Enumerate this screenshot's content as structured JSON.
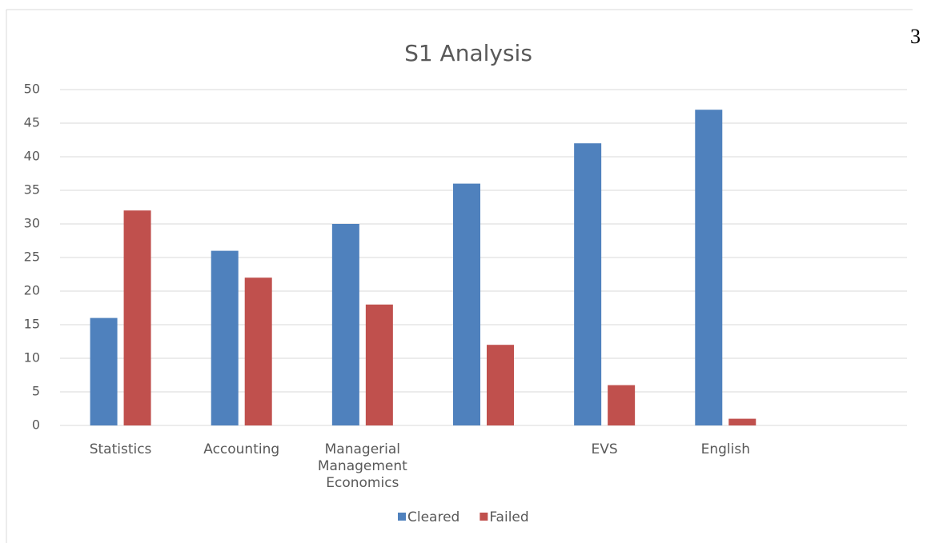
{
  "page_number": "3",
  "chart_data": {
    "type": "bar",
    "title": "S1 Analysis",
    "categories": [
      "Statistics",
      "Accounting",
      "Managerial Management Economics",
      null,
      "EVS",
      "English",
      null
    ],
    "series": [
      {
        "name": "Cleared",
        "color": "#4f81bd",
        "values": [
          16,
          26,
          30,
          36,
          42,
          47,
          null
        ]
      },
      {
        "name": "Failed",
        "color": "#c0504d",
        "values": [
          32,
          22,
          18,
          12,
          6,
          1,
          null
        ]
      }
    ],
    "ylim": [
      0,
      50
    ],
    "yticks": [
      0,
      5,
      10,
      15,
      20,
      25,
      30,
      35,
      40,
      45,
      50
    ],
    "grid": true,
    "legend": "bottom"
  }
}
